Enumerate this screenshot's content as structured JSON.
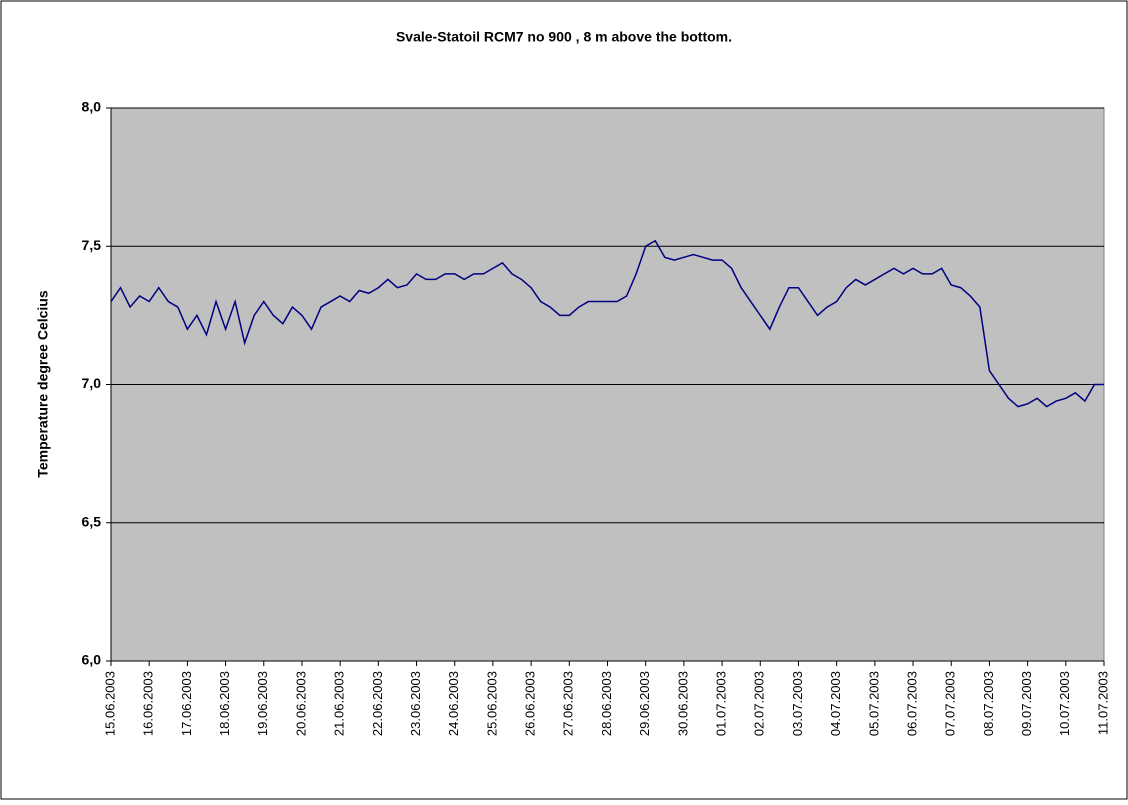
{
  "chart_data": {
    "type": "line",
    "title": "Svale-Statoil RCM7 no 900 , 8 m above the bottom.",
    "y_label": "Temperature degree Celcius",
    "categories": [
      "15.06.2003",
      null,
      null,
      null,
      "16.06.2003",
      null,
      null,
      null,
      "17.06.2003",
      null,
      null,
      null,
      "18.06.2003",
      null,
      null,
      null,
      "19.06.2003",
      null,
      null,
      null,
      "20.06.2003",
      null,
      null,
      null,
      "21.06.2003",
      null,
      null,
      null,
      "22.06.2003",
      null,
      null,
      null,
      "23.06.2003",
      null,
      null,
      null,
      "24.06.2003",
      null,
      null,
      null,
      "25.06.2003",
      null,
      null,
      null,
      "26.06.2003",
      null,
      null,
      null,
      "27.06.2003",
      null,
      null,
      null,
      "28.06.2003",
      null,
      null,
      null,
      "29.06.2003",
      null,
      null,
      null,
      "30.06.2003",
      null,
      null,
      null,
      "01.07.2003",
      null,
      null,
      null,
      "02.07.2003",
      null,
      null,
      null,
      "03.07.2003",
      null,
      null,
      null,
      "04.07.2003",
      null,
      null,
      null,
      "05.07.2003",
      null,
      null,
      null,
      "06.07.2003",
      null,
      null,
      null,
      "07.07.2003",
      null,
      null,
      null,
      "08.07.2003",
      null,
      null,
      null,
      "09.07.2003",
      null,
      null,
      null,
      "10.07.2003",
      null,
      null,
      null,
      "11.07.2003"
    ],
    "series": [
      {
        "name": "Temperature",
        "color": "#000080",
        "values": [
          7.3,
          7.35,
          7.28,
          7.32,
          7.3,
          7.35,
          7.3,
          7.28,
          7.2,
          7.25,
          7.18,
          7.3,
          7.2,
          7.3,
          7.15,
          7.25,
          7.3,
          7.25,
          7.22,
          7.28,
          7.25,
          7.2,
          7.28,
          7.3,
          7.32,
          7.3,
          7.34,
          7.33,
          7.35,
          7.38,
          7.35,
          7.36,
          7.4,
          7.38,
          7.38,
          7.4,
          7.4,
          7.38,
          7.4,
          7.4,
          7.42,
          7.44,
          7.4,
          7.38,
          7.35,
          7.3,
          7.28,
          7.25,
          7.25,
          7.28,
          7.3,
          7.3,
          7.3,
          7.3,
          7.32,
          7.4,
          7.5,
          7.52,
          7.46,
          7.45,
          7.46,
          7.47,
          7.46,
          7.45,
          7.45,
          7.42,
          7.35,
          7.3,
          7.25,
          7.2,
          7.28,
          7.35,
          7.35,
          7.3,
          7.25,
          7.28,
          7.3,
          7.35,
          7.38,
          7.36,
          7.38,
          7.4,
          7.42,
          7.4,
          7.42,
          7.4,
          7.4,
          7.42,
          7.36,
          7.35,
          7.32,
          7.28,
          7.05,
          7.0,
          6.95,
          6.92,
          6.93,
          6.95,
          6.92,
          6.94,
          6.95,
          6.97,
          6.94,
          7.0,
          7.0
        ]
      }
    ],
    "ylim": [
      6.0,
      8.0
    ],
    "yticks": [
      {
        "value": 6.0,
        "label": "6,0"
      },
      {
        "value": 6.5,
        "label": "6,5"
      },
      {
        "value": 7.0,
        "label": "7,0"
      },
      {
        "value": 7.5,
        "label": "7,5"
      },
      {
        "value": 8.0,
        "label": "8,0"
      }
    ],
    "grid": true,
    "plot_background": "#c0c0c0"
  }
}
